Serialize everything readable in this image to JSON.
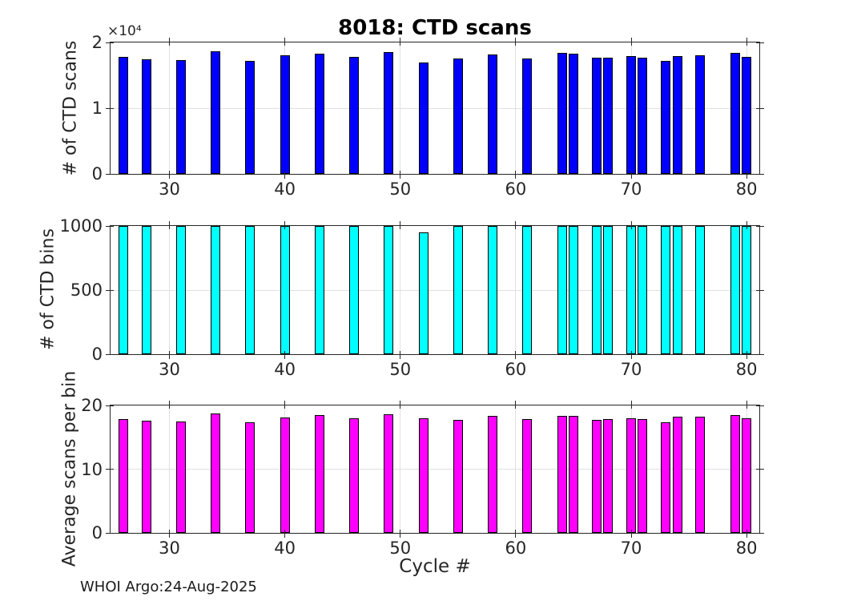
{
  "footer_text": "WHOI Argo:24-Aug-2025",
  "colors": {
    "scans_bar": "#0000ff",
    "bins_bar": "#00ffff",
    "avg_bar": "#ff00ff",
    "bar_edge": "#000000",
    "axis": "#262626",
    "grid": "#e0e0e0"
  },
  "chart_data": [
    {
      "type": "bar",
      "name": "ctd-scans",
      "title": "8018: CTD scans",
      "ylabel": "# of CTD scans",
      "exponent_label": "×10⁴",
      "ylim": [
        0,
        20000
      ],
      "yticks": [
        0,
        10000,
        20000
      ],
      "ytick_labels": [
        "0",
        "1",
        "2"
      ],
      "xlim": [
        24.9,
        81.1
      ],
      "xticks": [
        30,
        40,
        50,
        60,
        70,
        80
      ],
      "xtick_labels": [
        "30",
        "40",
        "50",
        "60",
        "70",
        "80"
      ],
      "grid": true,
      "bar_color": "#0000ff",
      "x": [
        26,
        28,
        31,
        34,
        37,
        40,
        43,
        46,
        49,
        52,
        55,
        58,
        61,
        64,
        65,
        67,
        68,
        70,
        71,
        73,
        74,
        76,
        79,
        80
      ],
      "values": [
        17750,
        17450,
        17350,
        18700,
        17150,
        18100,
        18300,
        17800,
        18500,
        16900,
        17550,
        18200,
        17550,
        18450,
        18250,
        17650,
        17650,
        17950,
        17700,
        17250,
        17950,
        18050,
        18450,
        17800
      ]
    },
    {
      "type": "bar",
      "name": "ctd-bins",
      "ylabel": "# of CTD bins",
      "ylim": [
        0,
        1000
      ],
      "yticks": [
        0,
        500,
        1000
      ],
      "ytick_labels": [
        "0",
        "500",
        "1000"
      ],
      "xlim": [
        24.9,
        81.1
      ],
      "xticks": [
        30,
        40,
        50,
        60,
        70,
        80
      ],
      "xtick_labels": [
        "30",
        "40",
        "50",
        "60",
        "70",
        "80"
      ],
      "grid": true,
      "bar_color": "#00ffff",
      "x": [
        26,
        28,
        31,
        34,
        37,
        40,
        43,
        46,
        49,
        52,
        55,
        58,
        61,
        64,
        65,
        67,
        68,
        70,
        71,
        73,
        74,
        76,
        79,
        80
      ],
      "values": [
        1000,
        1000,
        1000,
        1000,
        1000,
        1000,
        1000,
        1000,
        1000,
        950,
        1000,
        1000,
        1000,
        1000,
        1000,
        1000,
        1000,
        1000,
        1000,
        1000,
        1000,
        1000,
        1000,
        1000
      ]
    },
    {
      "type": "bar",
      "name": "avg-scans-per-bin",
      "ylabel": "Average scans per bin",
      "xlabel": "Cycle #",
      "ylim": [
        0,
        20
      ],
      "yticks": [
        0,
        10,
        20
      ],
      "ytick_labels": [
        "0",
        "10",
        "20"
      ],
      "xlim": [
        24.9,
        81.1
      ],
      "xticks": [
        30,
        40,
        50,
        60,
        70,
        80
      ],
      "xtick_labels": [
        "30",
        "40",
        "50",
        "60",
        "70",
        "80"
      ],
      "grid": true,
      "bar_color": "#ff00ff",
      "x": [
        26,
        28,
        31,
        34,
        37,
        40,
        43,
        46,
        49,
        52,
        55,
        58,
        61,
        64,
        65,
        67,
        68,
        70,
        71,
        73,
        74,
        76,
        79,
        80
      ],
      "values": [
        17.9,
        17.6,
        17.5,
        18.7,
        17.4,
        18.1,
        18.5,
        18.0,
        18.6,
        18.0,
        17.7,
        18.4,
        17.8,
        18.4,
        18.4,
        17.7,
        17.9,
        18.0,
        17.9,
        17.4,
        18.2,
        18.2,
        18.5,
        18.0
      ]
    }
  ]
}
